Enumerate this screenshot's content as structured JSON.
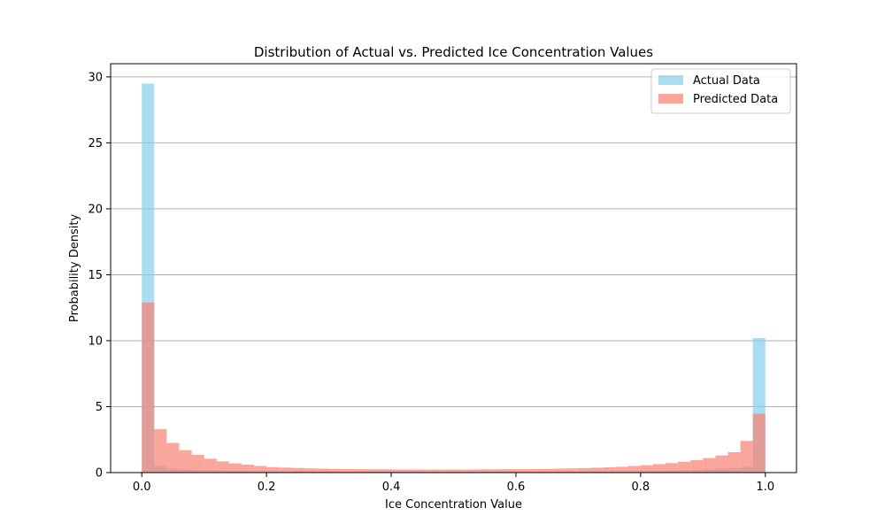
{
  "chart_data": {
    "type": "bar",
    "title": "Distribution of Actual vs. Predicted Ice Concentration Values",
    "xlabel": "Ice Concentration Value",
    "ylabel": "Probability Density",
    "xlim": [
      -0.05,
      1.05
    ],
    "ylim": [
      0,
      31
    ],
    "xticks": [
      0.0,
      0.2,
      0.4,
      0.6,
      0.8,
      1.0
    ],
    "xtick_labels": [
      "0.0",
      "0.2",
      "0.4",
      "0.6",
      "0.8",
      "1.0"
    ],
    "yticks": [
      0,
      5,
      10,
      15,
      20,
      25,
      30
    ],
    "ytick_labels": [
      "0",
      "5",
      "10",
      "15",
      "20",
      "25",
      "30"
    ],
    "grid": "y",
    "legend_position": "top-right",
    "bin_width": 0.02,
    "bin_starts": [
      0.0,
      0.02,
      0.04,
      0.06,
      0.08,
      0.1,
      0.12,
      0.14,
      0.16,
      0.18,
      0.2,
      0.22,
      0.24,
      0.26,
      0.28,
      0.3,
      0.32,
      0.34,
      0.36,
      0.38,
      0.4,
      0.42,
      0.44,
      0.46,
      0.48,
      0.5,
      0.52,
      0.54,
      0.56,
      0.58,
      0.6,
      0.62,
      0.64,
      0.66,
      0.68,
      0.7,
      0.72,
      0.74,
      0.76,
      0.78,
      0.8,
      0.82,
      0.84,
      0.86,
      0.88,
      0.9,
      0.92,
      0.94,
      0.96,
      0.98
    ],
    "series": [
      {
        "name": "Actual Data",
        "color": "#87ceeb",
        "values": [
          29.5,
          0.5,
          0.3,
          0.25,
          0.2,
          0.18,
          0.15,
          0.13,
          0.12,
          0.1,
          0.1,
          0.09,
          0.09,
          0.08,
          0.08,
          0.08,
          0.07,
          0.07,
          0.07,
          0.07,
          0.07,
          0.07,
          0.07,
          0.07,
          0.07,
          0.07,
          0.07,
          0.07,
          0.07,
          0.07,
          0.07,
          0.07,
          0.07,
          0.08,
          0.08,
          0.08,
          0.09,
          0.09,
          0.1,
          0.1,
          0.12,
          0.13,
          0.15,
          0.18,
          0.2,
          0.25,
          0.3,
          0.35,
          0.45,
          10.2
        ]
      },
      {
        "name": "Predicted Data",
        "color": "#fa8072",
        "values": [
          12.9,
          3.3,
          2.25,
          1.7,
          1.35,
          1.05,
          0.85,
          0.7,
          0.6,
          0.5,
          0.42,
          0.38,
          0.35,
          0.32,
          0.3,
          0.28,
          0.27,
          0.26,
          0.25,
          0.25,
          0.24,
          0.24,
          0.23,
          0.23,
          0.23,
          0.23,
          0.24,
          0.25,
          0.25,
          0.26,
          0.26,
          0.27,
          0.28,
          0.3,
          0.32,
          0.34,
          0.37,
          0.4,
          0.44,
          0.5,
          0.56,
          0.64,
          0.72,
          0.82,
          0.95,
          1.1,
          1.3,
          1.55,
          2.4,
          4.45
        ]
      }
    ]
  }
}
